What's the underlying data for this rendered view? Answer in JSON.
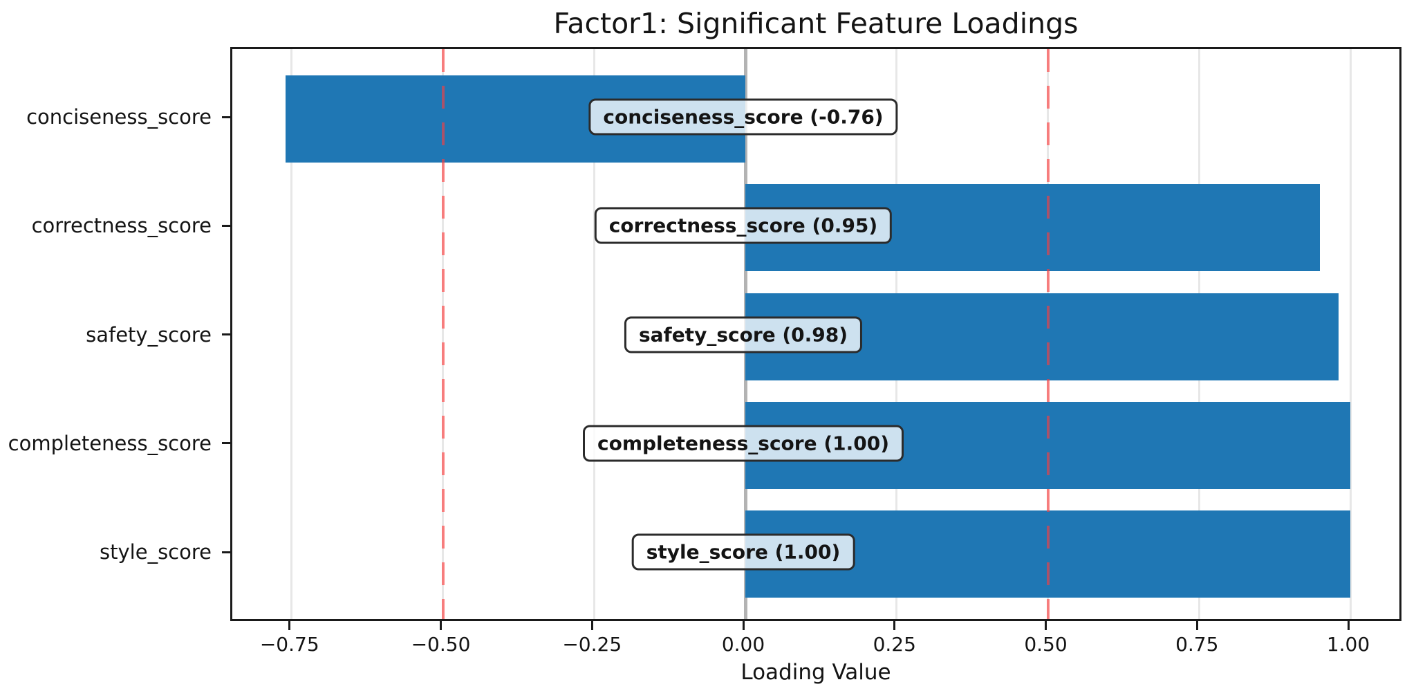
{
  "chart_data": {
    "type": "bar",
    "orientation": "horizontal",
    "title": "Factor1: Significant Feature Loadings",
    "xlabel": "Loading Value",
    "ylabel": "",
    "categories": [
      "conciseness_score",
      "correctness_score",
      "safety_score",
      "completeness_score",
      "style_score"
    ],
    "values": [
      -0.76,
      0.95,
      0.98,
      1.0,
      1.0
    ],
    "bar_labels": [
      "conciseness_score (-0.76)",
      "correctness_score (0.95)",
      "safety_score (0.98)",
      "completeness_score (1.00)",
      "style_score (1.00)"
    ],
    "xlim": [
      -0.848,
      1.088
    ],
    "xticks": {
      "values": [
        -0.75,
        -0.5,
        -0.25,
        0,
        0.25,
        0.5,
        0.75,
        1.0
      ],
      "labels": [
        "−0.75",
        "−0.50",
        "−0.25",
        "0.00",
        "0.25",
        "0.50",
        "0.75",
        "1.00"
      ]
    },
    "grid": true,
    "legend": "none",
    "colors": {
      "bar": "#1f77b4",
      "threshold_line": "#ff3c3c",
      "zero_line": "#b3b3b3",
      "gridline": "#e7e7e7",
      "label_box_border": "#2b2b2b",
      "label_box_fill": "rgba(255,255,255,0.78)"
    },
    "threshold_lines": {
      "values": [
        -0.5,
        0.5
      ],
      "style": "dashed"
    },
    "zero_line": {
      "value": 0
    }
  }
}
